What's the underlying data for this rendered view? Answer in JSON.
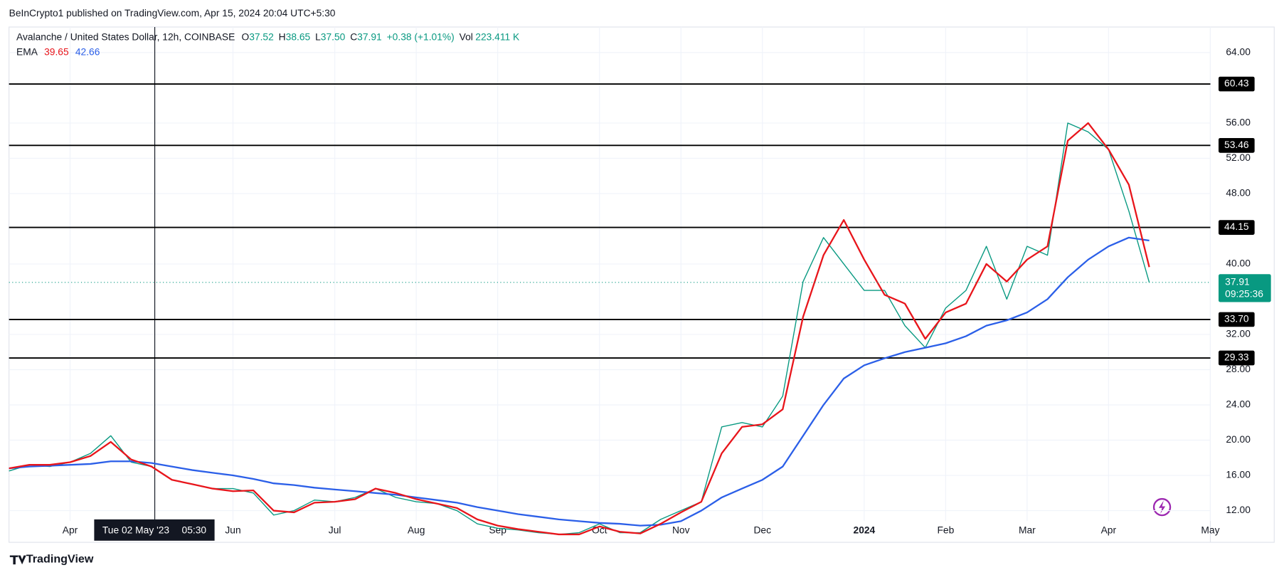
{
  "header": {
    "published": "BeInCrypto1 published on TradingView.com, Apr 15, 2024 20:04 UTC+5:30"
  },
  "chart_data": {
    "type": "line",
    "legend": {
      "symbol": "Avalanche / United States Dollar, 12h, COINBASE",
      "items": [
        {
          "key": "O",
          "value": "37.52"
        },
        {
          "key": "H",
          "value": "38.65"
        },
        {
          "key": "L",
          "value": "37.50"
        },
        {
          "key": "C",
          "value": "37.91"
        },
        {
          "key": "",
          "value": "+0.38 (+1.01%)"
        },
        {
          "key": "Vol",
          "value": "223.411 K"
        }
      ]
    },
    "categories": [
      null,
      null,
      null,
      "Apr",
      null,
      null,
      null,
      null,
      null,
      null,
      null,
      "Jun",
      null,
      null,
      null,
      null,
      "Jul",
      null,
      null,
      null,
      "Aug",
      null,
      null,
      null,
      "Sep",
      null,
      null,
      null,
      null,
      "Oct",
      null,
      null,
      null,
      "Nov",
      null,
      null,
      null,
      "Dec",
      null,
      null,
      null,
      null,
      "2024",
      null,
      null,
      null,
      "Feb",
      null,
      null,
      null,
      "Mar",
      null,
      null,
      null,
      "Apr",
      null,
      null,
      null,
      null,
      "May"
    ],
    "series": [
      {
        "color": "#089981",
        "values": [
          16.5,
          17.2,
          17.0,
          17.5,
          18.5,
          20.5,
          17.5,
          17.0,
          15.5,
          15.0,
          14.5,
          14.5,
          14.0,
          11.5,
          12.0,
          13.2,
          13.0,
          13.5,
          14.5,
          13.5,
          13.0,
          12.8,
          12.0,
          10.5,
          10.0,
          9.8,
          9.5,
          9.3,
          9.5,
          10.5,
          9.5,
          9.5,
          11.0,
          12.0,
          13.0,
          21.5,
          22.0,
          21.5,
          25.0,
          38.0,
          43.0,
          40.0,
          37.0,
          37.0,
          33.0,
          30.5,
          35.0,
          37.0,
          42.0,
          36.0,
          42.0,
          41.0,
          56.0,
          55.0,
          53.0,
          46.0,
          37.91,
          null,
          null,
          null
        ]
      },
      {
        "name": "EMA",
        "color": "#e8151b",
        "values": [
          16.8,
          17.2,
          17.2,
          17.5,
          18.2,
          19.8,
          17.8,
          17.0,
          15.5,
          15.0,
          14.5,
          14.2,
          14.3,
          12.0,
          11.8,
          12.9,
          13.0,
          13.3,
          14.5,
          14.0,
          13.3,
          12.8,
          12.3,
          11.0,
          10.3,
          9.9,
          9.6,
          9.3,
          9.3,
          10.2,
          9.6,
          9.4,
          10.5,
          11.8,
          13.0,
          18.5,
          21.5,
          21.8,
          23.5,
          34.0,
          41.0,
          45.0,
          40.5,
          36.5,
          35.5,
          31.5,
          34.5,
          35.5,
          40.0,
          38.0,
          40.5,
          42.0,
          54.0,
          56.0,
          53.0,
          49.0,
          39.65,
          null,
          null,
          null
        ]
      },
      {
        "color": "#2b5fe8",
        "values": [
          16.8,
          17.0,
          17.1,
          17.2,
          17.3,
          17.6,
          17.6,
          17.4,
          17.0,
          16.6,
          16.3,
          16.0,
          15.6,
          15.1,
          14.9,
          14.6,
          14.4,
          14.2,
          14.0,
          13.8,
          13.5,
          13.2,
          12.9,
          12.4,
          12.0,
          11.6,
          11.3,
          11.0,
          10.8,
          10.6,
          10.5,
          10.3,
          10.4,
          10.8,
          12.0,
          13.5,
          14.5,
          15.5,
          17.0,
          20.5,
          24.0,
          27.0,
          28.5,
          29.3,
          30.0,
          30.5,
          31.0,
          31.8,
          33.0,
          33.6,
          34.5,
          36.0,
          38.5,
          40.5,
          42.0,
          43.0,
          42.66,
          null,
          null,
          null
        ]
      }
    ],
    "ylim": [
      8.4,
      66.9
    ],
    "yticks": [
      {
        "value": 12,
        "label": "12.00"
      },
      {
        "value": 16,
        "label": "16.00"
      },
      {
        "value": 20,
        "label": "20.00"
      },
      {
        "value": 24,
        "label": "24.00"
      },
      {
        "value": 28,
        "label": "28.00"
      },
      {
        "value": 32,
        "label": "32.00"
      },
      {
        "value": 40,
        "label": "40.00"
      },
      {
        "value": 48,
        "label": "48.00"
      },
      {
        "value": 52,
        "label": "52.00"
      },
      {
        "value": 56,
        "label": "56.00"
      },
      {
        "value": 64,
        "label": "64.00"
      }
    ],
    "levels": [
      {
        "value": 60.43,
        "label": "60.43"
      },
      {
        "value": 53.46,
        "label": "53.46"
      },
      {
        "value": 44.15,
        "label": "44.15"
      },
      {
        "value": 33.7,
        "label": "33.70"
      },
      {
        "value": 29.33,
        "label": "29.33"
      }
    ],
    "countdown": "09:25:36",
    "crosshair": {
      "date": "Tue 02 May '23",
      "time": "05:30"
    },
    "grid": true
  },
  "footer": {
    "brand": "TradingView"
  }
}
